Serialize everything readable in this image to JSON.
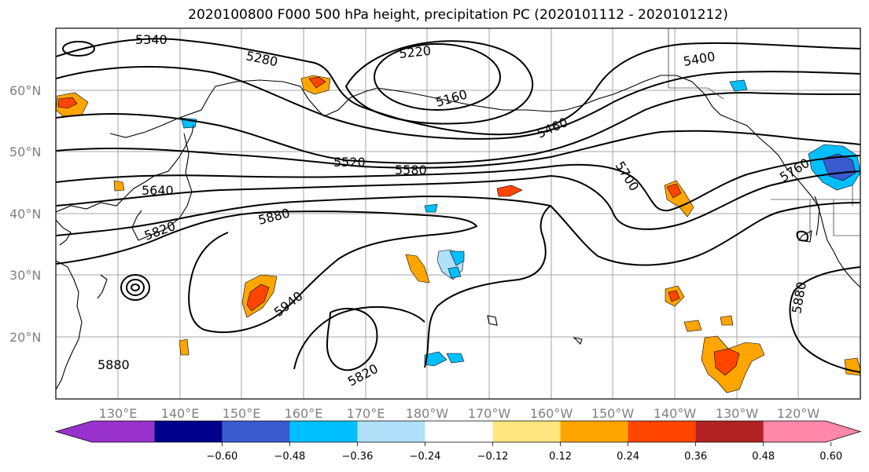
{
  "title": "2020100800 F000 500 hPa height, precipitation PC (2020101112 - 2020101212)",
  "latitude_labels": [
    "60°N",
    "50°N",
    "40°N",
    "30°N",
    "20°N"
  ],
  "longitude_labels": [
    "130°E",
    "140°E",
    "150°E",
    "160°E",
    "170°E",
    "180°W",
    "170°W",
    "160°W",
    "150°W",
    "140°W",
    "130°W",
    "120°W"
  ],
  "contour_labels": [
    "5340",
    "5280",
    "5220",
    "5160",
    "5400",
    "5460",
    "5520",
    "5580",
    "5640",
    "5700",
    "5760",
    "5820",
    "5880",
    "5940",
    "5820",
    "5880",
    "5880"
  ],
  "colorbar": {
    "ticks": [
      "−0.60",
      "−0.48",
      "−0.36",
      "−0.24",
      "−0.12",
      "0.12",
      "0.24",
      "0.36",
      "0.48",
      "0.60"
    ],
    "colors": [
      "#9932cc",
      "#00008b",
      "#3a5bcf",
      "#00bfff",
      "#b0e0fa",
      "#ffffff",
      "#ffe680",
      "#ffa500",
      "#ff4500",
      "#b22222",
      "#ff88aa"
    ]
  }
}
